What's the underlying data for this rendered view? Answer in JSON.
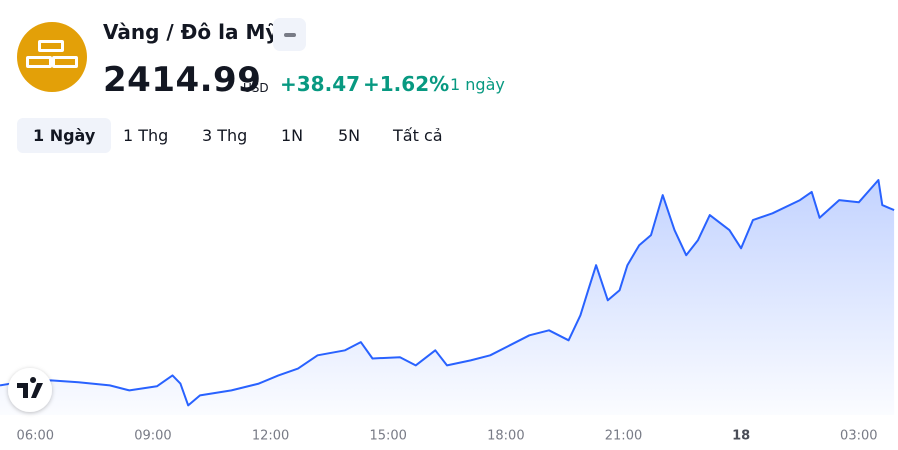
{
  "header": {
    "title": "Vàng / Đô la Mỹ",
    "price": "2414.99",
    "currency": "USD",
    "change": "+38.47",
    "change_pct": "+1.62%",
    "period": "1 ngày"
  },
  "tabs": [
    "1 Ngày",
    "1 Thg",
    "3 Thg",
    "1N",
    "5N",
    "Tất cả"
  ],
  "chart_data": {
    "type": "area",
    "color": "#2962ff",
    "x": [
      5.1,
      5.6,
      6.4,
      7.1,
      7.9,
      8.4,
      9.1,
      9.5,
      9.7,
      9.9,
      10.2,
      11.0,
      11.7,
      12.2,
      12.7,
      13.2,
      13.9,
      14.3,
      14.6,
      15.3,
      15.7,
      16.2,
      16.5,
      17.1,
      17.6,
      18.1,
      18.6,
      19.1,
      19.6,
      19.9,
      20.1,
      20.3,
      20.6,
      20.9,
      21.1,
      21.4,
      21.7,
      22.0,
      22.3,
      22.6,
      22.9,
      23.2,
      23.7,
      24.0,
      24.3,
      24.8,
      25.5,
      25.8,
      26.0,
      26.5,
      27.0,
      27.5,
      27.6,
      27.9
    ],
    "values": [
      2376.5,
      2377.2,
      2377.6,
      2377.2,
      2376.5,
      2375.4,
      2376.3,
      2378.7,
      2376.9,
      2372.1,
      2374.3,
      2375.4,
      2376.9,
      2378.7,
      2380.2,
      2383.1,
      2384.2,
      2386.0,
      2382.4,
      2382.7,
      2380.9,
      2384.2,
      2380.9,
      2382.0,
      2383.1,
      2385.3,
      2387.5,
      2388.6,
      2386.4,
      2391.9,
      2397.4,
      2402.9,
      2395.2,
      2397.4,
      2402.9,
      2407.3,
      2409.5,
      2418.3,
      2410.6,
      2405.1,
      2408.4,
      2413.9,
      2410.6,
      2406.6,
      2412.8,
      2414.3,
      2417.2,
      2419.0,
      2413.3,
      2417.2,
      2416.7,
      2421.6,
      2416.1,
      2415.0
    ],
    "xlim": [
      5.1,
      28
    ],
    "ylim": [
      2370,
      2426
    ],
    "xticks": [
      {
        "value": 6,
        "label": "06:00"
      },
      {
        "value": 9,
        "label": "09:00"
      },
      {
        "value": 12,
        "label": "12:00"
      },
      {
        "value": 15,
        "label": "15:00"
      },
      {
        "value": 18,
        "label": "18:00"
      },
      {
        "value": 21,
        "label": "21:00"
      },
      {
        "value": 24,
        "label": "18"
      },
      {
        "value": 27,
        "label": "03:00"
      }
    ]
  }
}
